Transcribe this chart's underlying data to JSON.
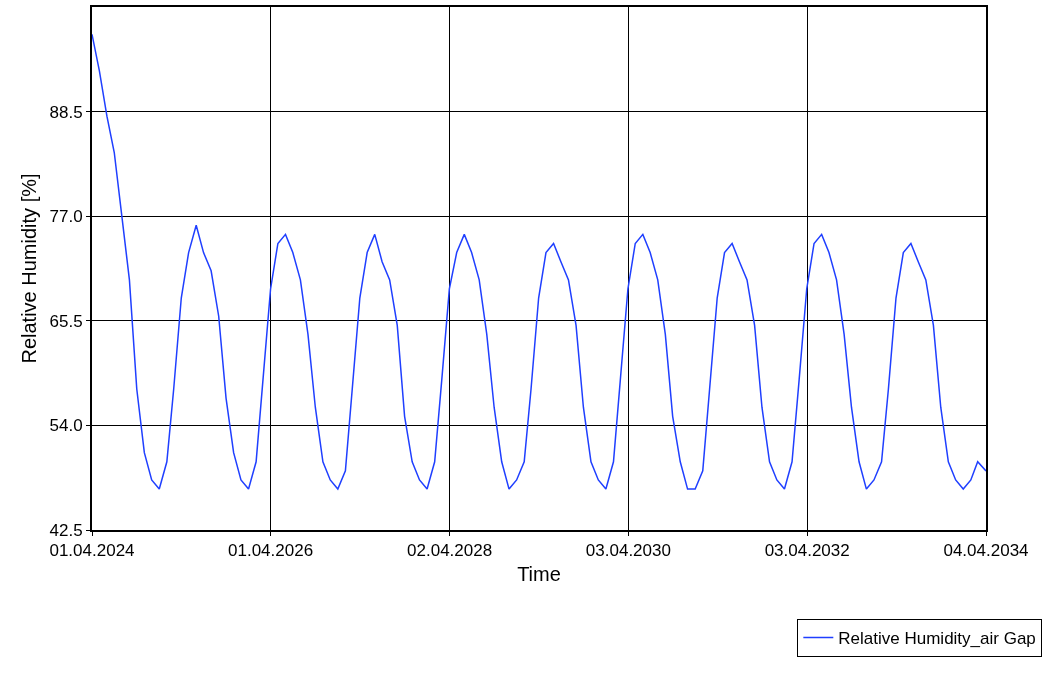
{
  "chart_data": {
    "type": "line",
    "xlabel": "Time",
    "ylabel": "Relative Humidity [%]",
    "x": [
      "2024-04-01",
      "2024-05-01",
      "2024-06-01",
      "2024-07-01",
      "2024-08-01",
      "2024-09-01",
      "2024-10-01",
      "2024-11-01",
      "2024-12-01",
      "2025-01-01",
      "2025-02-01",
      "2025-03-01",
      "2025-04-01",
      "2025-05-01",
      "2025-06-01",
      "2025-07-01",
      "2025-08-01",
      "2025-09-01",
      "2025-10-01",
      "2025-11-01",
      "2025-12-01",
      "2026-01-01",
      "2026-02-01",
      "2026-03-01",
      "2026-04-01",
      "2026-05-01",
      "2026-06-01",
      "2026-07-01",
      "2026-08-01",
      "2026-09-01",
      "2026-10-01",
      "2026-11-01",
      "2026-12-01",
      "2027-01-01",
      "2027-02-01",
      "2027-03-01",
      "2027-04-01",
      "2027-05-01",
      "2027-06-01",
      "2027-07-01",
      "2027-08-01",
      "2027-09-01",
      "2027-10-01",
      "2027-11-01",
      "2027-12-01",
      "2028-01-01",
      "2028-02-01",
      "2028-03-01",
      "2028-04-01",
      "2028-05-01",
      "2028-06-01",
      "2028-07-01",
      "2028-08-01",
      "2028-09-01",
      "2028-10-01",
      "2028-11-01",
      "2028-12-01",
      "2029-01-01",
      "2029-02-01",
      "2029-03-01",
      "2029-04-01",
      "2029-05-01",
      "2029-06-01",
      "2029-07-01",
      "2029-08-01",
      "2029-09-01",
      "2029-10-01",
      "2029-11-01",
      "2029-12-01",
      "2030-01-01",
      "2030-02-01",
      "2030-03-01",
      "2030-04-01",
      "2030-05-01",
      "2030-06-01",
      "2030-07-01",
      "2030-08-01",
      "2030-09-01",
      "2030-10-01",
      "2030-11-01",
      "2030-12-01",
      "2031-01-01",
      "2031-02-01",
      "2031-03-01",
      "2031-04-01",
      "2031-05-01",
      "2031-06-01",
      "2031-07-01",
      "2031-08-01",
      "2031-09-01",
      "2031-10-01",
      "2031-11-01",
      "2031-12-01",
      "2032-01-01",
      "2032-02-01",
      "2032-03-01",
      "2032-04-01",
      "2032-05-01",
      "2032-06-01",
      "2032-07-01",
      "2032-08-01",
      "2032-09-01",
      "2032-10-01",
      "2032-11-01",
      "2032-12-01",
      "2033-01-01",
      "2033-02-01",
      "2033-03-01",
      "2033-04-01",
      "2033-05-01",
      "2033-06-01",
      "2033-07-01",
      "2033-08-01",
      "2033-09-01",
      "2033-10-01",
      "2033-11-01",
      "2033-12-01",
      "2034-01-01",
      "2034-02-01",
      "2034-03-01",
      "2034-04-04"
    ],
    "series": [
      {
        "name": "Relative Humidity_air Gap",
        "color": "#1f3fff",
        "values": [
          97,
          93,
          88,
          84,
          77,
          70,
          58,
          51,
          48,
          47,
          50,
          58,
          68,
          73,
          76,
          73,
          71,
          66,
          57,
          51,
          48,
          47,
          50,
          59,
          69,
          74,
          75,
          73,
          70,
          64,
          56,
          50,
          48,
          47,
          49,
          58,
          68,
          73,
          75,
          72,
          70,
          65,
          55,
          50,
          48,
          47,
          50,
          59,
          69,
          73,
          75,
          73,
          70,
          64,
          56,
          50,
          47,
          48,
          50,
          58,
          68,
          73,
          74,
          72,
          70,
          65,
          56,
          50,
          48,
          47,
          50,
          59,
          69,
          74,
          75,
          73,
          70,
          64,
          55,
          50,
          47,
          47,
          49,
          58,
          68,
          73,
          74,
          72,
          70,
          65,
          56,
          50,
          48,
          47,
          50,
          59,
          69,
          74,
          75,
          73,
          70,
          64,
          56,
          50,
          47,
          48,
          50,
          58,
          68,
          73,
          74,
          72,
          70,
          65,
          56,
          50,
          48,
          47,
          48,
          50,
          49
        ]
      }
    ],
    "xlim": [
      "2024-04-01",
      "2034-04-04"
    ],
    "xticks": [
      {
        "value": "2024-04-01",
        "label": "01.04.2024"
      },
      {
        "value": "2026-04-01",
        "label": "01.04.2026"
      },
      {
        "value": "2028-04-02",
        "label": "02.04.2028"
      },
      {
        "value": "2030-04-03",
        "label": "03.04.2030"
      },
      {
        "value": "2032-04-03",
        "label": "03.04.2032"
      },
      {
        "value": "2034-04-04",
        "label": "04.04.2034"
      }
    ],
    "ylim": [
      42.5,
      100
    ],
    "yticks": [
      {
        "value": 42.5,
        "label": "42.5"
      },
      {
        "value": 54,
        "label": "54.0"
      },
      {
        "value": 65.5,
        "label": "65.5"
      },
      {
        "value": 77,
        "label": "77.0"
      },
      {
        "value": 88.5,
        "label": "88.5"
      }
    ],
    "grid": true,
    "legend": "bottom right",
    "line_style": "solid",
    "marker": "none"
  }
}
